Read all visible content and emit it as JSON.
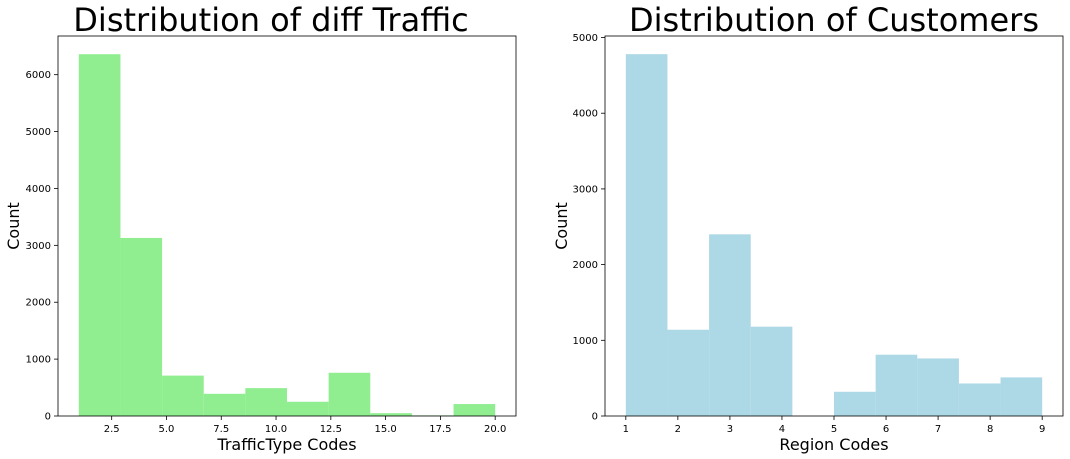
{
  "chart_data": [
    {
      "type": "bar",
      "title": "Distribution of diff Traffic",
      "xlabel": "TrafficType Codes",
      "ylabel": "Count",
      "color": "#90ee90",
      "bins": [
        {
          "x0": 1.0,
          "x1": 2.9,
          "value": 6360
        },
        {
          "x0": 2.9,
          "x1": 4.8,
          "value": 3130
        },
        {
          "x0": 4.8,
          "x1": 6.7,
          "value": 710
        },
        {
          "x0": 6.7,
          "x1": 8.6,
          "value": 390
        },
        {
          "x0": 8.6,
          "x1": 10.5,
          "value": 490
        },
        {
          "x0": 10.5,
          "x1": 12.4,
          "value": 250
        },
        {
          "x0": 12.4,
          "x1": 14.3,
          "value": 760
        },
        {
          "x0": 14.3,
          "x1": 16.2,
          "value": 50
        },
        {
          "x0": 16.2,
          "x1": 18.1,
          "value": 10
        },
        {
          "x0": 18.1,
          "x1": 20.0,
          "value": 210
        }
      ],
      "xlim": [
        0.05,
        20.95
      ],
      "ylim": [
        0,
        6680
      ],
      "xticks": [
        2.5,
        5.0,
        7.5,
        10.0,
        12.5,
        15.0,
        17.5,
        20.0
      ],
      "xtick_labels": [
        "2.5",
        "5.0",
        "7.5",
        "10.0",
        "12.5",
        "15.0",
        "17.5",
        "20.0"
      ],
      "yticks": [
        0,
        1000,
        2000,
        3000,
        4000,
        5000,
        6000
      ],
      "ytick_labels": [
        "0",
        "1000",
        "2000",
        "3000",
        "4000",
        "5000",
        "6000"
      ],
      "grid": false
    },
    {
      "type": "bar",
      "title": "Distribution of Customers",
      "xlabel": "Region Codes",
      "ylabel": "Count",
      "color": "#add8e6",
      "bins": [
        {
          "x0": 1.0,
          "x1": 1.8,
          "value": 4780
        },
        {
          "x0": 1.8,
          "x1": 2.6,
          "value": 1140
        },
        {
          "x0": 2.6,
          "x1": 3.4,
          "value": 2400
        },
        {
          "x0": 3.4,
          "x1": 4.2,
          "value": 1180
        },
        {
          "x0": 4.2,
          "x1": 5.0,
          "value": 0
        },
        {
          "x0": 5.0,
          "x1": 5.8,
          "value": 320
        },
        {
          "x0": 5.8,
          "x1": 6.6,
          "value": 810
        },
        {
          "x0": 6.6,
          "x1": 7.4,
          "value": 760
        },
        {
          "x0": 7.4,
          "x1": 8.2,
          "value": 430
        },
        {
          "x0": 8.2,
          "x1": 9.0,
          "value": 510
        }
      ],
      "xlim": [
        0.6,
        9.4
      ],
      "ylim": [
        0,
        5020
      ],
      "xticks": [
        1,
        2,
        3,
        4,
        5,
        6,
        7,
        8,
        9
      ],
      "xtick_labels": [
        "1",
        "2",
        "3",
        "4",
        "5",
        "6",
        "7",
        "8",
        "9"
      ],
      "yticks": [
        0,
        1000,
        2000,
        3000,
        4000,
        5000
      ],
      "ytick_labels": [
        "0",
        "1000",
        "2000",
        "3000",
        "4000",
        "5000"
      ],
      "grid": false
    }
  ]
}
